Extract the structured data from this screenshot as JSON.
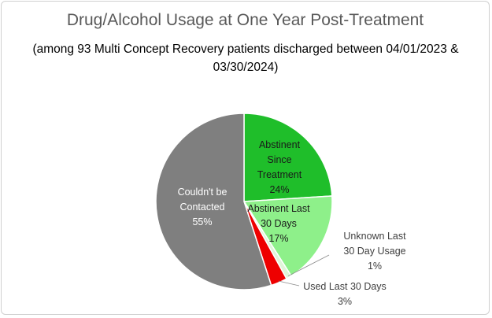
{
  "chart_data": {
    "type": "pie",
    "title": "Drug/Alcohol Usage at One Year Post-Treatment",
    "subtitle": "(among 93 Multi Concept Recovery patients discharged between 04/01/2023 & 03/30/2024)",
    "slices": [
      {
        "label": [
          "Abstinent",
          "Since",
          "Treatment"
        ],
        "percent_label": "24%",
        "value": 24,
        "color": "#1fbe2a",
        "text_color": "#1a1a1a",
        "label_position": "inside"
      },
      {
        "label": [
          "Abstinent Last",
          "30 Days"
        ],
        "percent_label": "17%",
        "value": 17,
        "color": "#8ef08a",
        "text_color": "#1a1a1a",
        "label_position": "inside"
      },
      {
        "label": [
          "Unknown Last",
          "30 Day Usage"
        ],
        "percent_label": "1%",
        "value": 1,
        "color": "#dff5d8",
        "text_color": "#404040",
        "label_position": "outside"
      },
      {
        "label": [
          "Used Last 30 Days"
        ],
        "percent_label": "3%",
        "value": 3,
        "color": "#ee0000",
        "text_color": "#404040",
        "label_position": "outside"
      },
      {
        "label": [
          "Couldn't be",
          "Contacted"
        ],
        "percent_label": "55%",
        "value": 55,
        "color": "#7f7f7f",
        "text_color": "#ffffff",
        "label_position": "inside"
      }
    ]
  }
}
